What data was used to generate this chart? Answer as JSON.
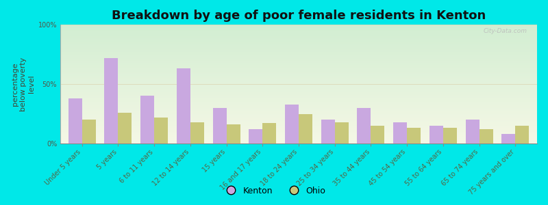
{
  "title": "Breakdown by age of poor female residents in Kenton",
  "ylabel": "percentage\nbelow poverty\nlevel",
  "categories": [
    "Under 5 years",
    "5 years",
    "6 to 11 years",
    "12 to 14 years",
    "15 years",
    "16 and 17 years",
    "18 to 24 years",
    "25 to 34 years",
    "35 to 44 years",
    "45 to 54 years",
    "55 to 64 years",
    "65 to 74 years",
    "75 years and over"
  ],
  "kenton_values": [
    38,
    72,
    40,
    63,
    30,
    12,
    33,
    20,
    30,
    18,
    15,
    20,
    8
  ],
  "ohio_values": [
    20,
    26,
    22,
    18,
    16,
    17,
    25,
    18,
    15,
    13,
    13,
    12,
    15
  ],
  "kenton_color": "#c9a8e0",
  "ohio_color": "#c8c87a",
  "background_color": "#00e8e8",
  "ylim": [
    0,
    100
  ],
  "yticks": [
    0,
    50,
    100
  ],
  "ytick_labels": [
    "0%",
    "50%",
    "100%"
  ],
  "bar_width": 0.38,
  "title_fontsize": 13,
  "tick_fontsize": 7,
  "ylabel_fontsize": 8,
  "legend_fontsize": 9,
  "watermark": "City-Data.com"
}
